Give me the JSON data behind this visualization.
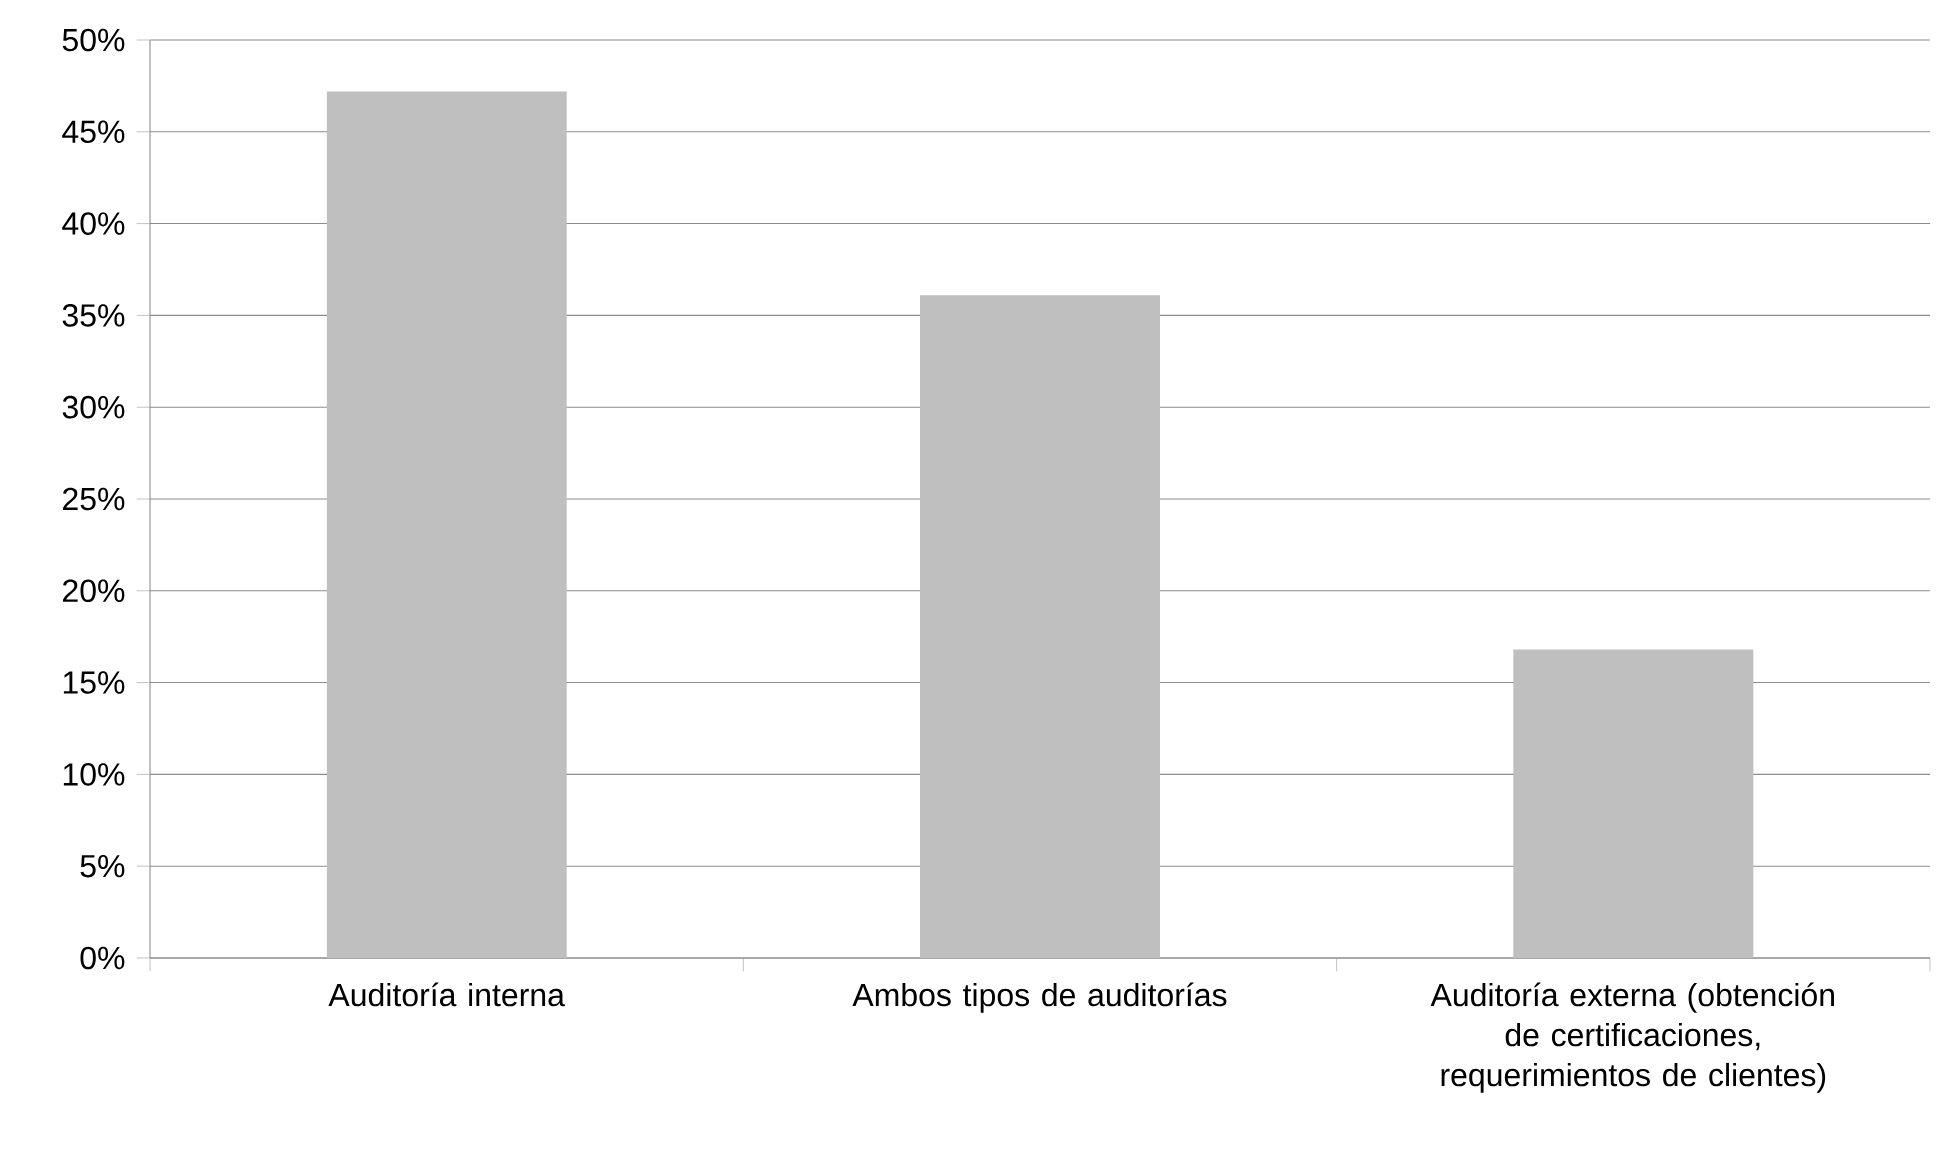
{
  "chart_data": {
    "type": "bar",
    "categories": [
      "Auditoría interna",
      "Ambos tipos de auditorías",
      "Auditoría externa (obtención de certificaciones, requerimientos de clientes)"
    ],
    "values": [
      47.2,
      36.1,
      16.8
    ],
    "color": "#bfbfbf",
    "ylim": [
      0,
      50
    ],
    "yticks": [
      {
        "value": 0,
        "label": "0%"
      },
      {
        "value": 5,
        "label": "5%"
      },
      {
        "value": 10,
        "label": "10%"
      },
      {
        "value": 15,
        "label": "15%"
      },
      {
        "value": 20,
        "label": "20%"
      },
      {
        "value": 25,
        "label": "25%"
      },
      {
        "value": 30,
        "label": "30%"
      },
      {
        "value": 35,
        "label": "35%"
      },
      {
        "value": 40,
        "label": "40%"
      },
      {
        "value": 45,
        "label": "45%"
      },
      {
        "value": 50,
        "label": "50%"
      }
    ],
    "grid": "y"
  }
}
